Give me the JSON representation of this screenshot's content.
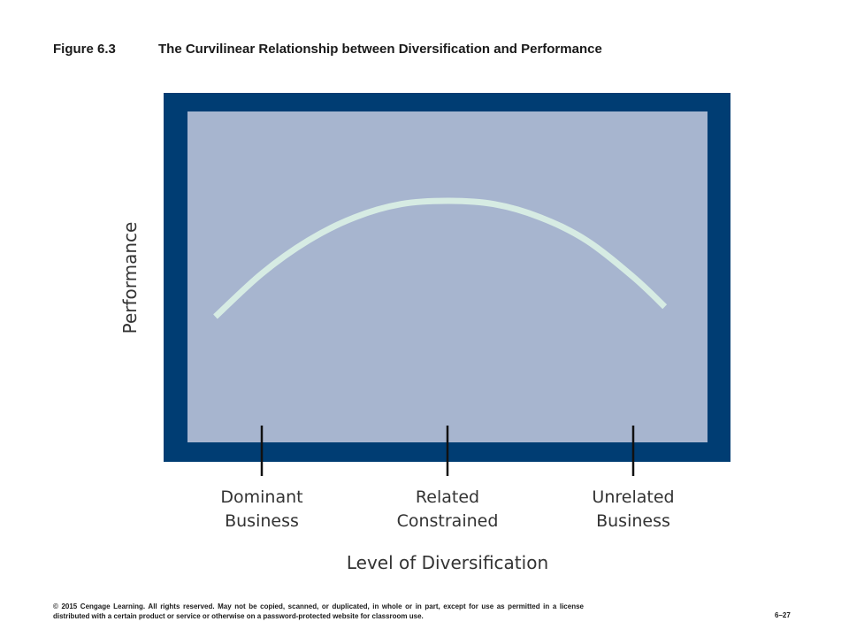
{
  "header": {
    "figure_number": "Figure 6.3",
    "figure_title": "The Curvilinear Relationship between Diversification and Performance"
  },
  "chart_data": {
    "type": "line",
    "title": "The Curvilinear Relationship between Diversification and Performance",
    "xlabel": "Level of Diversification",
    "ylabel": "Performance",
    "x_ticks": [
      {
        "line1": "Dominant",
        "line2": "Business",
        "x": 1
      },
      {
        "line1": "Related",
        "line2": "Constrained",
        "x": 2
      },
      {
        "line1": "Unrelated",
        "line2": "Business",
        "x": 3
      }
    ],
    "xlim": [
      0.6,
      3.4
    ],
    "ylim": [
      0,
      1
    ],
    "series": [
      {
        "x": [
          0.75,
          1.0,
          1.25,
          1.5,
          1.75,
          2.0,
          2.25,
          2.5,
          2.75,
          3.0,
          3.17
        ],
        "values": [
          0.38,
          0.51,
          0.61,
          0.68,
          0.72,
          0.73,
          0.72,
          0.68,
          0.61,
          0.5,
          0.41
        ]
      }
    ],
    "grid": false,
    "legend": "none",
    "colors": {
      "frame": "#003D73",
      "plot_area": "#A7B5CF",
      "curve": "#D6EBE3",
      "tick": "#111111",
      "label": "#333333"
    }
  },
  "footer": {
    "copyright": "© 2015 Cengage Learning. All rights reserved. May not be copied, scanned, or duplicated, in whole or in part, except for use as permitted in a license distributed with a certain product or service or otherwise on a password-protected website for classroom use.",
    "page_number": "6–27"
  }
}
